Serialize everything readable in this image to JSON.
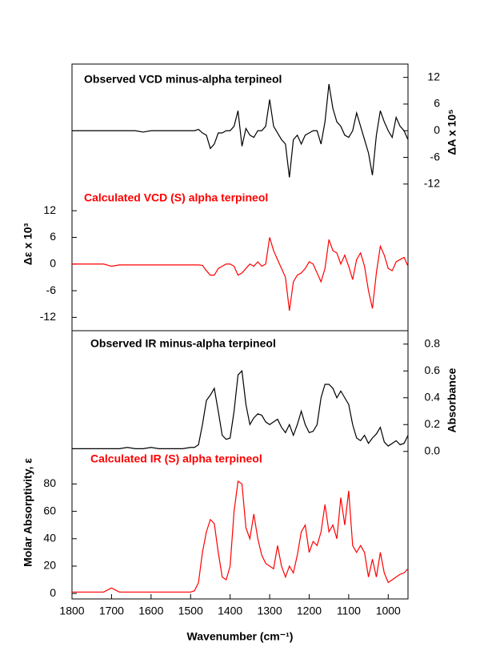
{
  "chart_data": [
    {
      "type": "line",
      "x": [
        1800,
        1780,
        1760,
        1740,
        1720,
        1700,
        1680,
        1660,
        1640,
        1620,
        1600,
        1580,
        1560,
        1540,
        1520,
        1500,
        1490,
        1480,
        1470,
        1460,
        1450,
        1440,
        1430,
        1420,
        1410,
        1400,
        1390,
        1380,
        1370,
        1360,
        1350,
        1340,
        1330,
        1320,
        1310,
        1300,
        1290,
        1280,
        1270,
        1260,
        1250,
        1240,
        1230,
        1220,
        1210,
        1200,
        1190,
        1180,
        1170,
        1160,
        1150,
        1140,
        1130,
        1120,
        1110,
        1100,
        1090,
        1080,
        1070,
        1060,
        1050,
        1040,
        1030,
        1020,
        1010,
        1000,
        990,
        980,
        970,
        960,
        950
      ],
      "xlim": [
        1800,
        950
      ],
      "ylim": [
        -15,
        45
      ],
      "yticks": [
        -12,
        -6,
        0,
        6,
        12
      ],
      "ylabel": "Δε x 10³",
      "y2lim": [
        -45,
        15
      ],
      "y2ticks": [
        -12,
        -6,
        0,
        6,
        12
      ],
      "y2label": "ΔA x 10⁵",
      "series": [
        {
          "name": "Observed VCD minus-alpha terpineol",
          "color": "#000000",
          "axis": "y2",
          "values": [
            0,
            0,
            0,
            0,
            0,
            0,
            0,
            0,
            0,
            -0.3,
            0,
            0,
            0,
            0,
            0,
            0,
            0,
            0.3,
            -0.5,
            -1,
            -4,
            -3,
            -0.5,
            -0.5,
            0,
            0,
            1,
            4.5,
            -3.5,
            0.5,
            -1,
            -1.5,
            0,
            0,
            1,
            7,
            1,
            -0.5,
            -2,
            -3,
            -10.5,
            -2,
            -1,
            -3,
            -1,
            -0.5,
            0,
            0,
            -3,
            2,
            10.5,
            5,
            2,
            1,
            -1,
            -1.5,
            0,
            4,
            1,
            -2,
            -5,
            -10,
            -1,
            4.5,
            2,
            0,
            -1.5,
            3,
            1,
            0,
            -2
          ]
        },
        {
          "name": "Calculated VCD (S) alpha terpineol",
          "color": "#ff0000",
          "axis": "y",
          "values": [
            0,
            0,
            0,
            0,
            0,
            -0.5,
            -0.2,
            -0.2,
            -0.2,
            -0.2,
            -0.2,
            -0.2,
            -0.2,
            -0.2,
            -0.2,
            -0.2,
            -0.2,
            -0.2,
            -0.3,
            -1.5,
            -2.5,
            -2.5,
            -1,
            -0.5,
            0,
            0,
            -0.5,
            -2.5,
            -2,
            -1,
            0,
            -0.5,
            0.5,
            -0.5,
            0,
            6,
            3,
            1,
            -1,
            -3,
            -10.5,
            -4,
            -2.5,
            -2,
            -1,
            0.5,
            0,
            -2,
            -4,
            -1,
            5.5,
            3,
            2.5,
            0,
            2,
            -0.5,
            -3.5,
            1,
            2.5,
            -0.5,
            -6,
            -10,
            -2,
            4,
            2,
            -1,
            -1.5,
            0.5,
            1,
            1.5,
            -0.5
          ]
        }
      ]
    },
    {
      "type": "line",
      "x": [
        1800,
        1780,
        1760,
        1740,
        1720,
        1700,
        1680,
        1660,
        1640,
        1620,
        1600,
        1580,
        1560,
        1540,
        1520,
        1500,
        1490,
        1480,
        1470,
        1460,
        1450,
        1440,
        1430,
        1420,
        1410,
        1400,
        1390,
        1380,
        1370,
        1360,
        1350,
        1340,
        1330,
        1320,
        1310,
        1300,
        1290,
        1280,
        1270,
        1260,
        1250,
        1240,
        1230,
        1220,
        1210,
        1200,
        1190,
        1180,
        1170,
        1160,
        1150,
        1140,
        1130,
        1120,
        1110,
        1100,
        1090,
        1080,
        1070,
        1060,
        1050,
        1040,
        1030,
        1020,
        1010,
        1000,
        990,
        980,
        970,
        960,
        950
      ],
      "xlim": [
        1800,
        950
      ],
      "xticks": [
        1800,
        1700,
        1600,
        1500,
        1400,
        1300,
        1200,
        1100,
        1000
      ],
      "xlabel": "Wavenumber (cm⁻¹)",
      "ylim": [
        -4,
        192
      ],
      "yticks": [
        0,
        20,
        40,
        60,
        80
      ],
      "ylabel": "Molar Absorptivity, ε",
      "y2lim": [
        -1.1,
        0.9
      ],
      "y2ticks": [
        {
          "value": 0,
          "label": "0.0"
        },
        0.2,
        0.4,
        0.6,
        0.8
      ],
      "y2label": "Absorbance",
      "series": [
        {
          "name": "Observed IR minus-alpha terpineol",
          "color": "#000000",
          "axis": "y2",
          "values": [
            0.02,
            0.02,
            0.02,
            0.02,
            0.02,
            0.02,
            0.02,
            0.03,
            0.02,
            0.02,
            0.03,
            0.02,
            0.02,
            0.02,
            0.02,
            0.03,
            0.03,
            0.05,
            0.2,
            0.38,
            0.42,
            0.47,
            0.3,
            0.12,
            0.09,
            0.1,
            0.3,
            0.57,
            0.6,
            0.35,
            0.2,
            0.25,
            0.28,
            0.27,
            0.22,
            0.2,
            0.22,
            0.24,
            0.18,
            0.14,
            0.2,
            0.12,
            0.2,
            0.3,
            0.2,
            0.14,
            0.15,
            0.2,
            0.4,
            0.5,
            0.5,
            0.47,
            0.4,
            0.45,
            0.4,
            0.35,
            0.2,
            0.1,
            0.08,
            0.12,
            0.06,
            0.1,
            0.13,
            0.18,
            0.07,
            0.04,
            0.06,
            0.08,
            0.05,
            0.06,
            0.12
          ]
        },
        {
          "name": "Calculated IR (S) alpha terpineol",
          "color": "#ff0000",
          "axis": "y",
          "values": [
            1,
            1,
            1,
            1,
            1,
            4,
            1,
            1,
            1,
            1,
            1,
            1,
            1,
            1,
            1,
            1,
            2,
            8,
            30,
            45,
            54,
            51,
            30,
            12,
            10,
            20,
            60,
            82,
            80,
            48,
            40,
            58,
            40,
            28,
            22,
            20,
            18,
            35,
            20,
            12,
            20,
            15,
            28,
            45,
            50,
            30,
            38,
            35,
            45,
            65,
            45,
            50,
            40,
            70,
            50,
            75,
            35,
            30,
            35,
            30,
            12,
            25,
            12,
            30,
            15,
            8,
            10,
            12,
            14,
            15,
            18
          ]
        }
      ]
    }
  ]
}
